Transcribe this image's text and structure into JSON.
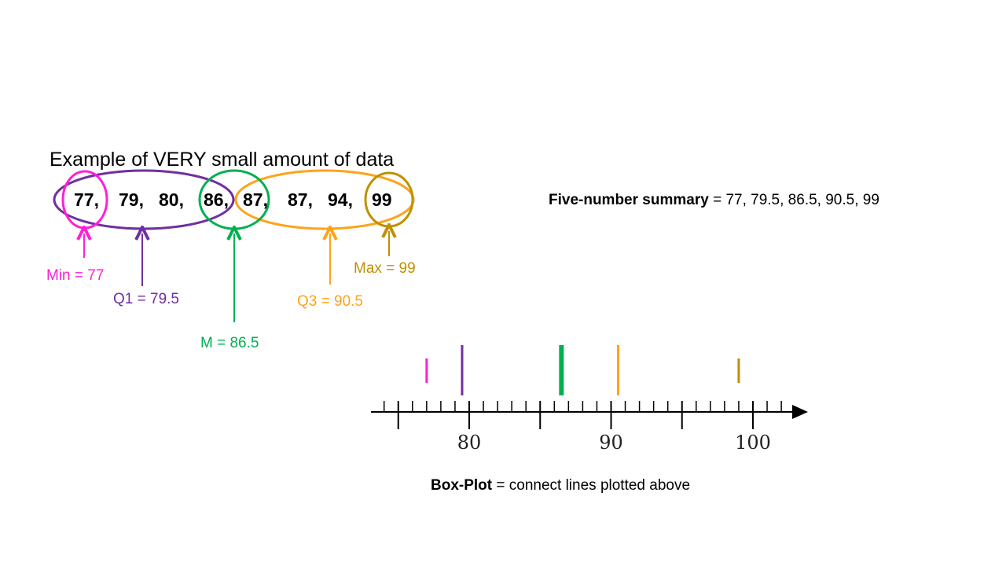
{
  "title": "Example of VERY small amount of data",
  "data_values": [
    "77,",
    "79,",
    "80,",
    "86,",
    "87,",
    "87,",
    "94,",
    "99"
  ],
  "summary": {
    "label": "Five-number summary",
    "text": " = 77, 79.5, 86.5, 90.5, 99"
  },
  "labels": {
    "min": "Min = 77",
    "q1": "Q1 = 79.5",
    "median": "M = 86.5",
    "q3": "Q3 = 90.5",
    "max": "Max = 99"
  },
  "caption": {
    "label": "Box-Plot",
    "text": " = connect lines plotted above"
  },
  "colors": {
    "min": "#ff1fd6",
    "q1": "#7030a0",
    "median": "#00b050",
    "q3": "#ffa319",
    "max": "#bf9000",
    "axis": "#000000"
  },
  "chart_data": {
    "type": "number-line",
    "xlim": [
      74,
      103
    ],
    "major_ticks": [
      80,
      90,
      100
    ],
    "tick_labels": [
      "80",
      "90",
      "100"
    ],
    "five_number_summary": [
      {
        "name": "Min",
        "value": 77
      },
      {
        "name": "Q1",
        "value": 79.5
      },
      {
        "name": "M",
        "value": 86.5
      },
      {
        "name": "Q3",
        "value": 90.5
      },
      {
        "name": "Max",
        "value": 99
      }
    ]
  }
}
